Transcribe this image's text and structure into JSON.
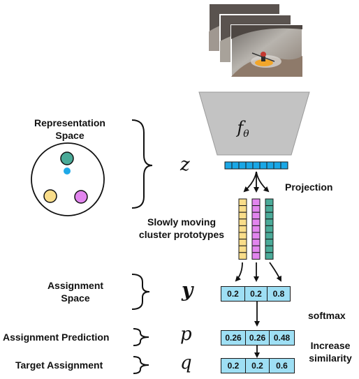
{
  "labels": {
    "representation_space": "Representation\nSpace",
    "projection": "Projection",
    "prototypes": "Slowly moving\ncluster prototypes",
    "assignment_space": "Assignment\nSpace",
    "assignment_prediction": "Assignment Prediction",
    "target_assignment": "Target Assignment",
    "softmax": "softmax",
    "increase_similarity": "Increase\nsimilarity"
  },
  "math": {
    "encoder": "f",
    "encoder_sub": "θ",
    "z": "z",
    "y": "y",
    "p": "p",
    "q": "q"
  },
  "vectors": {
    "y": [
      "0.2",
      "0.2",
      "0.8"
    ],
    "p": [
      "0.26",
      "0.26",
      "0.48"
    ],
    "q": [
      "0.2",
      "0.2",
      "0.6"
    ]
  },
  "colors": {
    "encoder_fill": "#c3c3c3",
    "embedding_cell": "#1aa7e6",
    "prototype_yellow": "#f9dd8a",
    "prototype_purple": "#e285ee",
    "prototype_teal": "#4aaa98",
    "vector_fill": "#9edff4",
    "rep_dot_blue": "#1ea9e8"
  },
  "icons": {
    "video_frames": "kayak-video-frames",
    "representation_space": "cluster-circle"
  }
}
